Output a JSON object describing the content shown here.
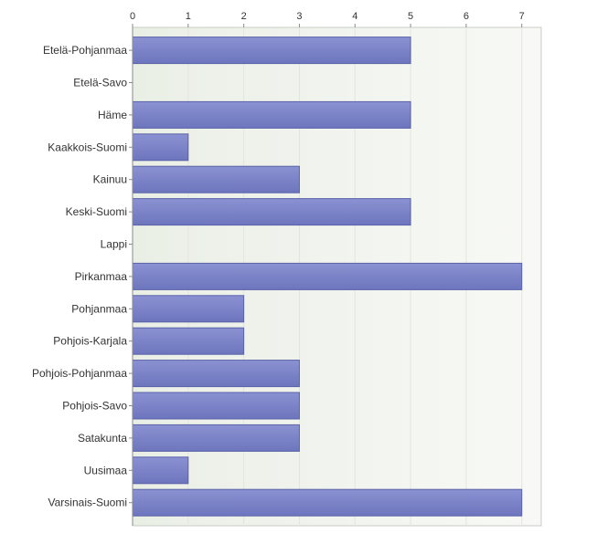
{
  "chart_data": {
    "type": "bar",
    "orientation": "horizontal",
    "categories": [
      "Etelä-Pohjanmaa",
      "Etelä-Savo",
      "Häme",
      "Kaakkois-Suomi",
      "Kainuu",
      "Keski-Suomi",
      "Lappi",
      "Pirkanmaa",
      "Pohjanmaa",
      "Pohjois-Karjala",
      "Pohjois-Pohjanmaa",
      "Pohjois-Savo",
      "Satakunta",
      "Uusimaa",
      "Varsinais-Suomi"
    ],
    "values": [
      5,
      0,
      5,
      1,
      3,
      5,
      0,
      7,
      2,
      2,
      3,
      3,
      3,
      1,
      7
    ],
    "xticks": [
      "0",
      "1",
      "2",
      "3",
      "4",
      "5",
      "6",
      "7"
    ],
    "xlim": [
      0,
      7.35
    ],
    "xaxis_position": "top",
    "grid": true,
    "legend": "none",
    "title": "",
    "xlabel": "",
    "ylabel": "",
    "colors": {
      "bar": "#7b83c6",
      "bar_edge": "#5a62a8",
      "plot_bg": "#f3f5f0",
      "grid": "#e2e6dc",
      "axis": "#8a8a8a"
    }
  }
}
